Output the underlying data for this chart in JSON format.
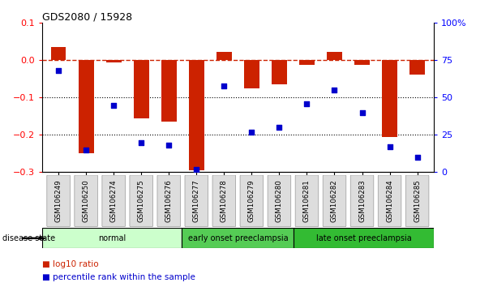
{
  "title": "GDS2080 / 15928",
  "samples": [
    "GSM106249",
    "GSM106250",
    "GSM106274",
    "GSM106275",
    "GSM106276",
    "GSM106277",
    "GSM106278",
    "GSM106279",
    "GSM106280",
    "GSM106281",
    "GSM106282",
    "GSM106283",
    "GSM106284",
    "GSM106285"
  ],
  "log10_ratio": [
    0.035,
    -0.25,
    -0.005,
    -0.155,
    -0.165,
    -0.295,
    0.022,
    -0.075,
    -0.065,
    -0.012,
    0.022,
    -0.012,
    -0.205,
    -0.038
  ],
  "percentile_rank": [
    68,
    15,
    45,
    20,
    18,
    2,
    58,
    27,
    30,
    46,
    55,
    40,
    17,
    10
  ],
  "bar_color": "#cc2200",
  "scatter_color": "#0000cc",
  "dashed_line_color": "#cc2200",
  "groups": [
    {
      "label": "normal",
      "start": 0,
      "end": 5,
      "color": "#ccffcc"
    },
    {
      "label": "early onset preeclampsia",
      "start": 5,
      "end": 9,
      "color": "#55cc55"
    },
    {
      "label": "late onset preeclampsia",
      "start": 9,
      "end": 14,
      "color": "#33bb33"
    }
  ],
  "ylim_left": [
    -0.3,
    0.1
  ],
  "ylim_right": [
    0,
    100
  ],
  "yticks_left": [
    -0.3,
    -0.2,
    -0.1,
    0.0,
    0.1
  ],
  "yticks_right": [
    0,
    25,
    50,
    75,
    100
  ],
  "ytick_right_labels": [
    "0",
    "25",
    "50",
    "75",
    "100%"
  ],
  "grid_vals": [
    -0.1,
    -0.2
  ],
  "disease_state_label": "disease state"
}
